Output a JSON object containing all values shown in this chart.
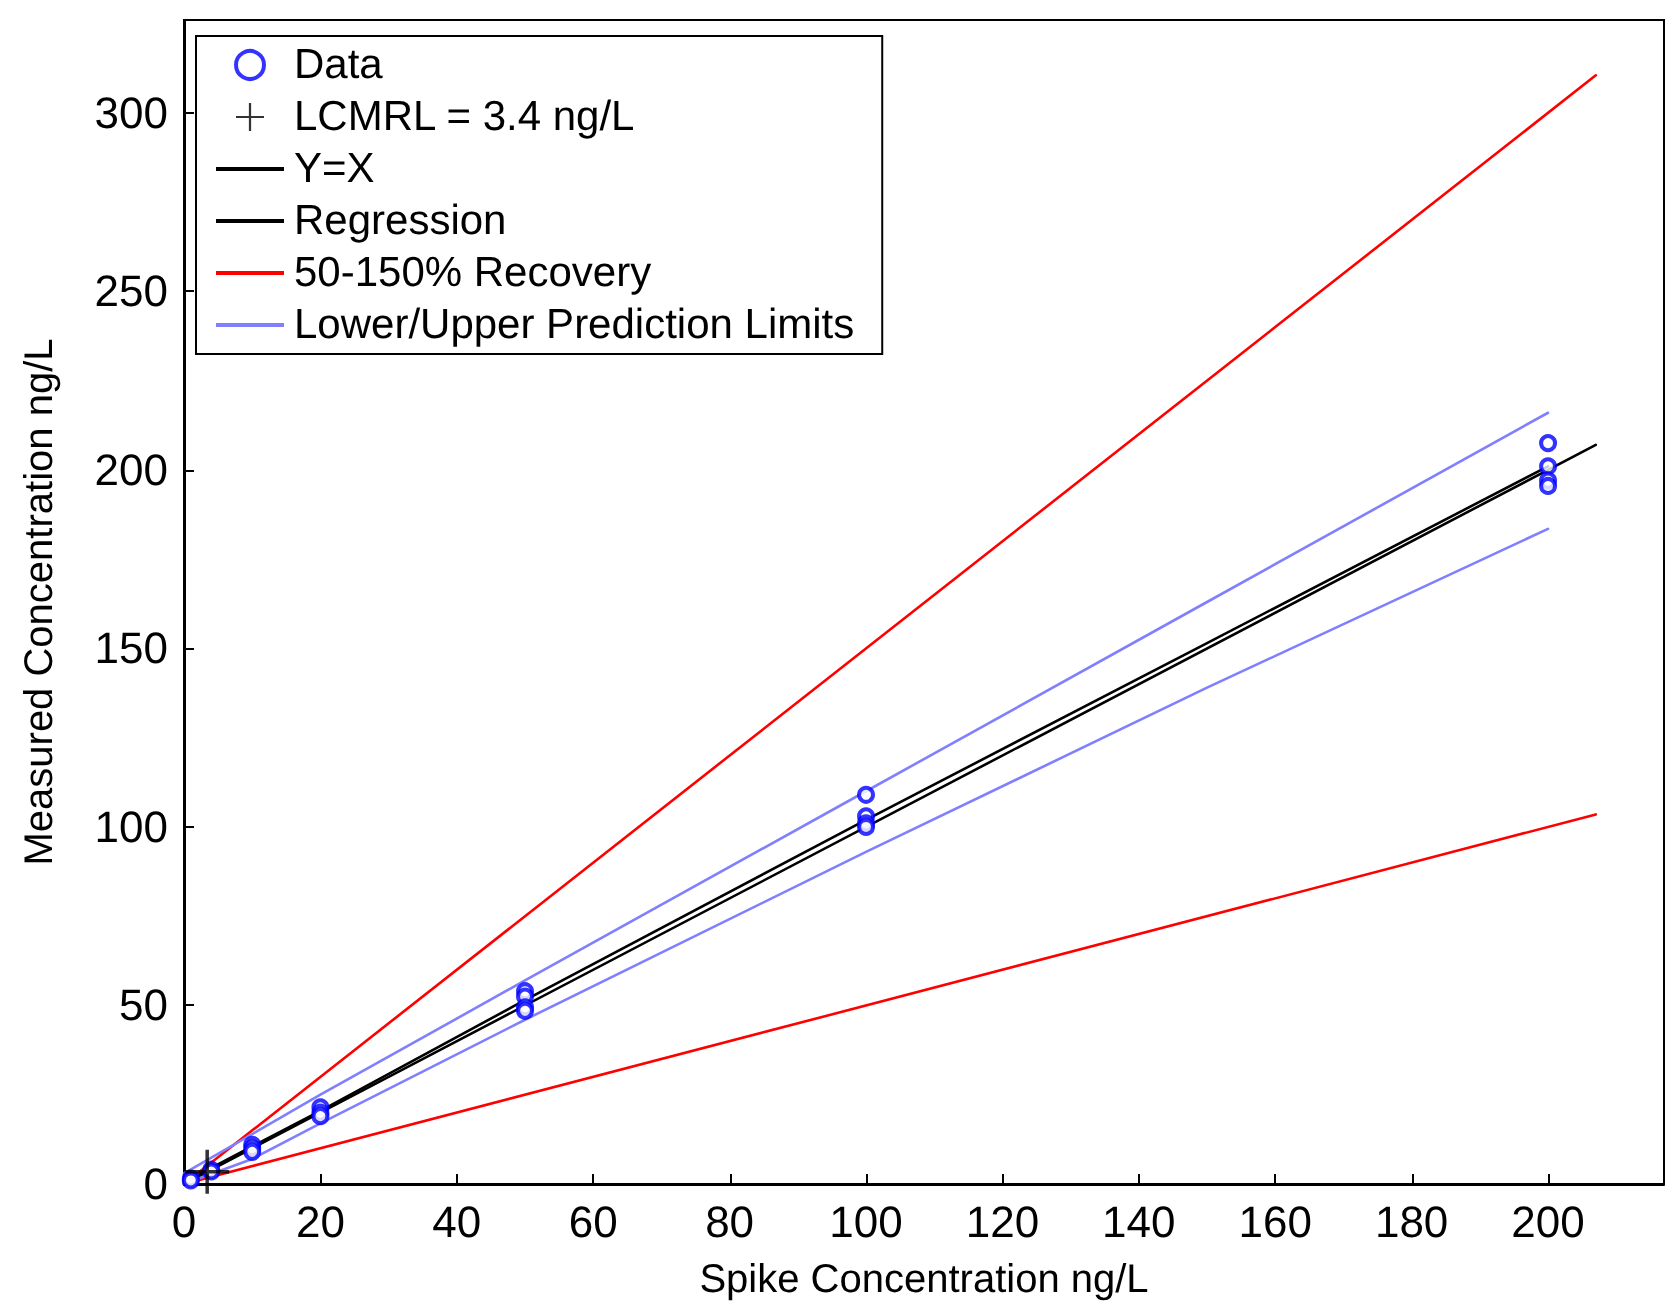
{
  "chart_data": {
    "type": "scatter",
    "xlabel": "Spike Concentration ng/L",
    "ylabel": "Measured Concentration ng/L",
    "xlim": [
      0,
      217
    ],
    "ylim": [
      0,
      326
    ],
    "xticks": [
      0,
      20,
      40,
      60,
      80,
      100,
      120,
      140,
      160,
      180,
      200
    ],
    "yticks": [
      0,
      50,
      100,
      150,
      200,
      250,
      300
    ],
    "grid": false,
    "line_style": "solid",
    "legend": "top left",
    "series": [
      {
        "name": "Data",
        "marker": "circle",
        "color": "#0000ff",
        "x": [
          1,
          1,
          4,
          4,
          10,
          10,
          10,
          20,
          20,
          20,
          50,
          50,
          50,
          50,
          100,
          100,
          100,
          100,
          200,
          200,
          200,
          200
        ],
        "values": [
          1.5,
          1,
          4,
          3.5,
          11,
          10,
          9,
          21.5,
          20,
          19,
          54,
          52.5,
          49.5,
          48.5,
          109,
          103,
          101,
          100,
          207.5,
          201,
          197,
          195.5
        ]
      },
      {
        "name": "LCMRL = 3.4 ng/L",
        "marker": "cross",
        "color": "#000000",
        "x": [
          3.4
        ],
        "values": [
          3.4
        ]
      },
      {
        "name": "Y=X",
        "type": "line",
        "marker": "none",
        "color": "#000000",
        "x": [
          0,
          207
        ],
        "values": [
          0,
          207
        ]
      },
      {
        "name": "Regression",
        "type": "line",
        "marker": "none",
        "color": "#000000",
        "x": [
          0,
          10,
          20,
          50,
          100,
          150,
          200
        ],
        "values": [
          0.5,
          10.5,
          20.5,
          51.5,
          102,
          151.5,
          201
        ]
      },
      {
        "name": "50-150% Recovery",
        "type": "line",
        "marker": "none",
        "color": "#ff0000",
        "x": [
          0,
          207
        ],
        "values": [
          0,
          310.5
        ]
      },
      {
        "type": "line",
        "marker": "none",
        "color": "#ff0000",
        "x": [
          0,
          207
        ],
        "values": [
          0,
          103.5
        ]
      },
      {
        "name": "Lower/Upper Prediction Limits",
        "type": "line",
        "marker": "none",
        "color": "#8080ff",
        "x": [
          0,
          10,
          20,
          50,
          100,
          150,
          200
        ],
        "values": [
          3,
          14,
          25,
          57,
          110,
          163,
          216
        ]
      },
      {
        "type": "line",
        "marker": "none",
        "color": "#8080ff",
        "x": [
          0,
          10,
          20,
          50,
          100,
          150,
          200
        ],
        "values": [
          0,
          7,
          17,
          46,
          93,
          139,
          183.5
        ]
      }
    ]
  }
}
